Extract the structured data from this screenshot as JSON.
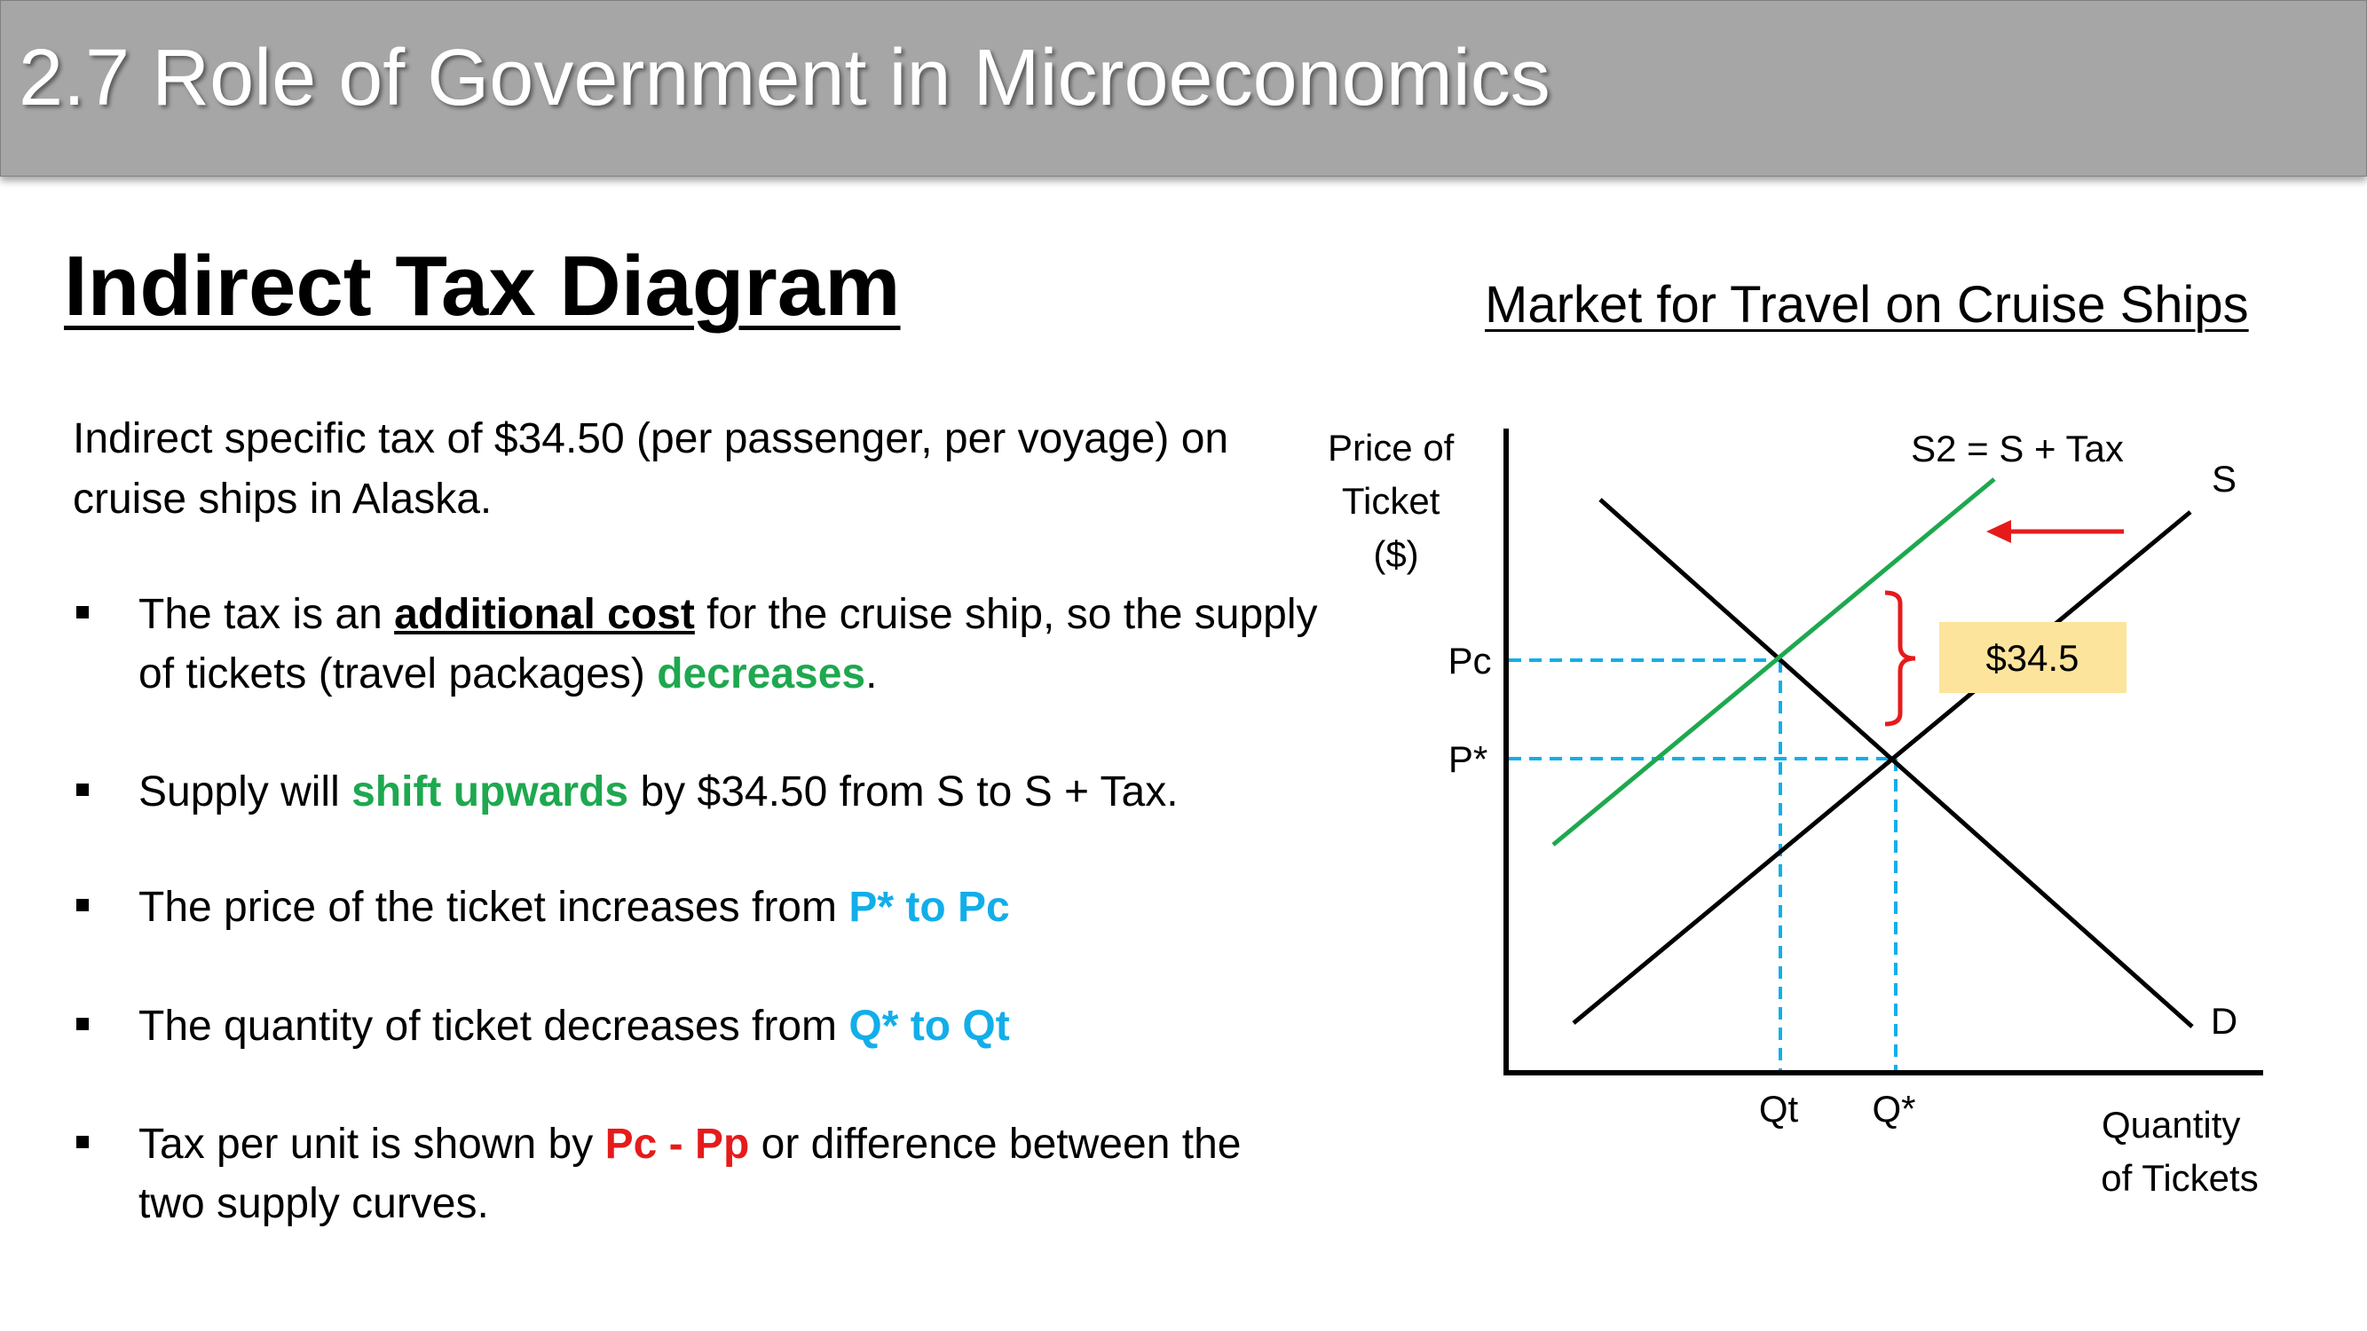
{
  "slide": {
    "title": "2.7 Role of Government in Microeconomics",
    "heading": "Indirect Tax Diagram",
    "intro": "Indirect specific tax of $34.50 (per passenger, per voyage) on cruise ships in Alaska."
  },
  "bullets": [
    {
      "segments": [
        {
          "text": "The tax is an ",
          "style": "plain"
        },
        {
          "text": "additional cost",
          "style": "bold-underline"
        },
        {
          "text": " for the cruise ship, so the supply of tickets (travel packages) ",
          "style": "plain"
        },
        {
          "text": "decreases",
          "style": "green"
        },
        {
          "text": ".",
          "style": "plain"
        }
      ]
    },
    {
      "segments": [
        {
          "text": "Supply will ",
          "style": "plain"
        },
        {
          "text": "shift upwards",
          "style": "green"
        },
        {
          "text": " by $34.50 from S to S + Tax.",
          "style": "plain"
        }
      ]
    },
    {
      "segments": [
        {
          "text": "The price of the ticket increases from ",
          "style": "plain"
        },
        {
          "text": "P* to Pc",
          "style": "blue"
        }
      ]
    },
    {
      "segments": [
        {
          "text": "The quantity of ticket decreases from ",
          "style": "plain"
        },
        {
          "text": "Q* to Qt",
          "style": "blue"
        }
      ]
    },
    {
      "segments": [
        {
          "text": "Tax per unit is shown by ",
          "style": "plain"
        },
        {
          "text": "Pc - Pp",
          "style": "red"
        },
        {
          "text": " or difference between the two supply curves.",
          "style": "plain"
        }
      ]
    }
  ],
  "diagram": {
    "title": "Market for Travel on Cruise Ships",
    "y_axis_label": [
      "Price of",
      "Ticket",
      "($)"
    ],
    "x_axis_label": [
      "Quantity",
      "of Tickets"
    ],
    "supply_label": "S",
    "new_supply_label": "S2 = S + Tax",
    "demand_label": "D",
    "price_consumer_label": "Pc",
    "price_equilibrium_label": "P*",
    "quantity_tax_label": "Qt",
    "quantity_equilibrium_label": "Q*",
    "tax_box_label": "$34.5",
    "colors": {
      "curves": "#000000",
      "new_supply": "#1ea84f",
      "guides": "#12aee9",
      "tax_bracket": "#e51b1b",
      "shift_arrow": "#e51b1b",
      "tax_box_fill": "#fde49c"
    }
  }
}
